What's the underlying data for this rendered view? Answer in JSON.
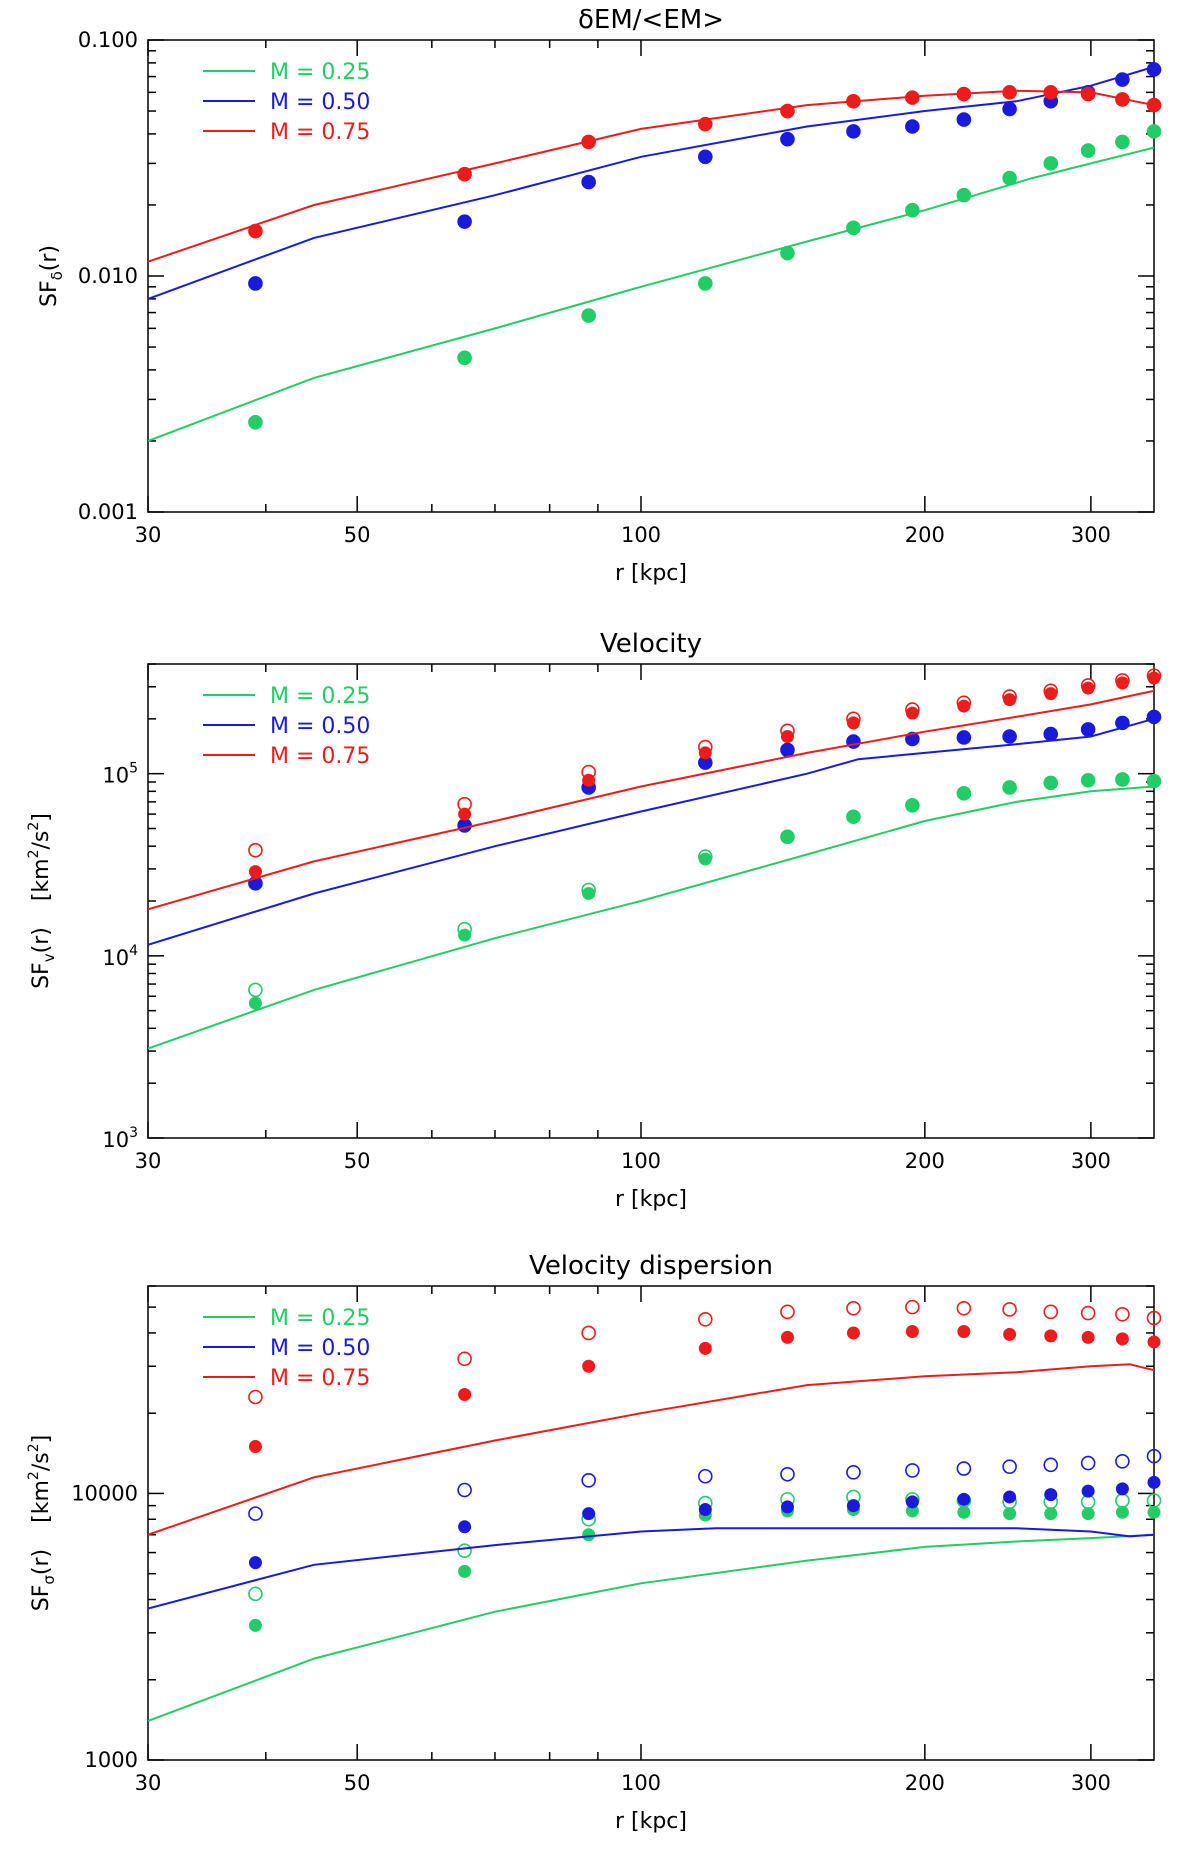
{
  "chart_data": [
    {
      "type": "line",
      "title": "δEM/<EM>",
      "xlabel": "r [kpc]",
      "ylabel": "SF_δ(r)",
      "ylabel_main": "SF",
      "ylabel_sub": "δ",
      "ylabel_tail": "(r)",
      "xscale": "log",
      "yscale": "log",
      "xlim": [
        30,
        350
      ],
      "ylim": [
        0.001,
        0.1
      ],
      "xticks": [
        {
          "v": 30,
          "label": "30"
        },
        {
          "v": 50,
          "label": "50"
        },
        {
          "v": 100,
          "label": "100"
        },
        {
          "v": 200,
          "label": "200"
        },
        {
          "v": 300,
          "label": "300"
        }
      ],
      "yticks": [
        {
          "v": 0.001,
          "label": "0.001"
        },
        {
          "v": 0.01,
          "label": "0.010"
        },
        {
          "v": 0.1,
          "label": "0.100"
        }
      ],
      "legend_position": "top-left",
      "series": [
        {
          "name": "M = 0.25",
          "color": "#22cc66",
          "line_x": [
            30,
            45,
            70,
            100,
            150,
            200,
            260,
            300,
            350
          ],
          "line_y": [
            0.002,
            0.0037,
            0.006,
            0.009,
            0.014,
            0.019,
            0.026,
            0.03,
            0.035
          ],
          "points_x": [
            39,
            65,
            88,
            117,
            143,
            168,
            194,
            220,
            246,
            272,
            298,
            324,
            350
          ],
          "points_y": [
            0.0024,
            0.0045,
            0.0068,
            0.0093,
            0.0125,
            0.016,
            0.019,
            0.022,
            0.026,
            0.03,
            0.034,
            0.037,
            0.041
          ],
          "open_y": [
            0.0024,
            0.0045,
            0.0068,
            0.0093,
            0.0125,
            0.016,
            0.019,
            0.022,
            0.026,
            0.03,
            0.034,
            0.037,
            0.041
          ]
        },
        {
          "name": "M = 0.50",
          "color": "#1a1adc",
          "line_x": [
            30,
            45,
            70,
            100,
            150,
            200,
            250,
            300,
            350
          ],
          "line_y": [
            0.008,
            0.0145,
            0.022,
            0.032,
            0.043,
            0.05,
            0.055,
            0.064,
            0.077
          ],
          "points_x": [
            39,
            65,
            88,
            117,
            143,
            168,
            194,
            220,
            246,
            272,
            298,
            324,
            350
          ],
          "points_y": [
            0.0093,
            0.017,
            0.025,
            0.032,
            0.038,
            0.041,
            0.043,
            0.046,
            0.051,
            0.055,
            0.06,
            0.068,
            0.075
          ],
          "open_y": [
            0.0093,
            0.017,
            0.025,
            0.032,
            0.038,
            0.041,
            0.043,
            0.046,
            0.051,
            0.055,
            0.06,
            0.068,
            0.075
          ]
        },
        {
          "name": "M = 0.75",
          "color": "#ee1b1b",
          "line_x": [
            30,
            45,
            70,
            100,
            150,
            200,
            250,
            300,
            350
          ],
          "line_y": [
            0.0115,
            0.02,
            0.03,
            0.042,
            0.053,
            0.058,
            0.061,
            0.06,
            0.053
          ],
          "points_x": [
            39,
            65,
            88,
            117,
            143,
            168,
            194,
            220,
            246,
            272,
            298,
            324,
            350
          ],
          "points_y": [
            0.0155,
            0.027,
            0.037,
            0.044,
            0.05,
            0.055,
            0.057,
            0.059,
            0.06,
            0.06,
            0.059,
            0.056,
            0.053
          ],
          "open_y": [
            0.0155,
            0.027,
            0.037,
            0.044,
            0.05,
            0.055,
            0.057,
            0.059,
            0.06,
            0.06,
            0.059,
            0.056,
            0.053
          ]
        }
      ]
    },
    {
      "type": "line",
      "title": "Velocity",
      "xlabel": "r [kpc]",
      "ylabel": "SF_v(r) [km²/s²]",
      "ylabel_main": "SF",
      "ylabel_sub": "v",
      "ylabel_tail": "(r)",
      "ylabel_units_pre": "[km",
      "ylabel_units_s1": "2",
      "ylabel_units_mid": "/s",
      "ylabel_units_s2": "2",
      "ylabel_units_post": "]",
      "xscale": "log",
      "yscale": "log",
      "xlim": [
        30,
        350
      ],
      "ylim": [
        1000,
        400000
      ],
      "xticks": [
        {
          "v": 30,
          "label": "30"
        },
        {
          "v": 50,
          "label": "50"
        },
        {
          "v": 100,
          "label": "100"
        },
        {
          "v": 200,
          "label": "200"
        },
        {
          "v": 300,
          "label": "300"
        }
      ],
      "yticks": [
        {
          "v": 1000,
          "base": "10",
          "exp": "3"
        },
        {
          "v": 10000,
          "base": "10",
          "exp": "4"
        },
        {
          "v": 100000,
          "base": "10",
          "exp": "5"
        }
      ],
      "legend_position": "top-left",
      "series": [
        {
          "name": "M = 0.25",
          "color": "#22cc66",
          "line_x": [
            30,
            45,
            70,
            100,
            150,
            200,
            250,
            300,
            350
          ],
          "line_y": [
            3100,
            6500,
            12500,
            20000,
            36000,
            55000,
            70000,
            80000,
            85000
          ],
          "points_x": [
            39,
            65,
            88,
            117,
            143,
            168,
            194,
            220,
            246,
            272,
            298,
            324,
            350
          ],
          "points_y": [
            5500,
            13000,
            22000,
            34000,
            45000,
            58000,
            67000,
            78000,
            84000,
            89000,
            92000,
            93000,
            91000
          ],
          "open_y": [
            6500,
            14000,
            23000,
            35000,
            45000,
            58000,
            67000,
            78000,
            84000,
            89000,
            92000,
            93000,
            91000
          ]
        },
        {
          "name": "M = 0.50",
          "color": "#1a1adc",
          "line_x": [
            30,
            45,
            70,
            100,
            150,
            170,
            200,
            250,
            300,
            350
          ],
          "line_y": [
            11500,
            22000,
            40000,
            62000,
            100000,
            120000,
            130000,
            145000,
            160000,
            200000
          ],
          "points_x": [
            39,
            65,
            88,
            117,
            143,
            168,
            194,
            220,
            246,
            272,
            298,
            324,
            350
          ],
          "points_y": [
            25000,
            52000,
            84000,
            115000,
            135000,
            150000,
            155000,
            158000,
            160000,
            165000,
            175000,
            190000,
            205000
          ],
          "open_y": [
            25000,
            52000,
            84000,
            115000,
            135000,
            150000,
            155000,
            158000,
            160000,
            165000,
            175000,
            190000,
            205000
          ]
        },
        {
          "name": "M = 0.75",
          "color": "#ee1b1b",
          "line_x": [
            30,
            45,
            70,
            100,
            150,
            200,
            250,
            300,
            350
          ],
          "line_y": [
            18000,
            33000,
            55000,
            85000,
            130000,
            170000,
            205000,
            240000,
            285000
          ],
          "points_x": [
            39,
            65,
            88,
            117,
            143,
            168,
            194,
            220,
            246,
            272,
            298,
            324,
            350
          ],
          "points_y": [
            29000,
            60000,
            92000,
            130000,
            160000,
            190000,
            215000,
            235000,
            255000,
            275000,
            295000,
            315000,
            335000
          ],
          "open_y": [
            38000,
            68000,
            102000,
            140000,
            172000,
            200000,
            225000,
            245000,
            265000,
            285000,
            305000,
            325000,
            345000
          ]
        }
      ]
    },
    {
      "type": "line",
      "title": "Velocity dispersion",
      "xlabel": "r [kpc]",
      "ylabel": "SF_σ(r) [km²/s²]",
      "ylabel_main": "SF",
      "ylabel_sub": "σ",
      "ylabel_tail": "(r)",
      "ylabel_units_pre": "[km",
      "ylabel_units_s1": "2",
      "ylabel_units_mid": "/s",
      "ylabel_units_s2": "2",
      "ylabel_units_post": "]",
      "xscale": "log",
      "yscale": "log",
      "xlim": [
        30,
        350
      ],
      "ylim": [
        1000,
        60000
      ],
      "xticks": [
        {
          "v": 30,
          "label": "30"
        },
        {
          "v": 50,
          "label": "50"
        },
        {
          "v": 100,
          "label": "100"
        },
        {
          "v": 200,
          "label": "200"
        },
        {
          "v": 300,
          "label": "300"
        }
      ],
      "yticks": [
        {
          "v": 1000,
          "label": "1000"
        },
        {
          "v": 10000,
          "label": "10000"
        }
      ],
      "legend_position": "top-left",
      "series": [
        {
          "name": "M = 0.25",
          "color": "#22cc66",
          "line_x": [
            30,
            45,
            70,
            100,
            150,
            200,
            250,
            300,
            350
          ],
          "line_y": [
            1400,
            2400,
            3600,
            4600,
            5600,
            6300,
            6600,
            6800,
            7000
          ],
          "points_x": [
            39,
            65,
            88,
            117,
            143,
            168,
            194,
            220,
            246,
            272,
            298,
            324,
            350
          ],
          "points_y": [
            3200,
            5100,
            7000,
            8300,
            8600,
            8700,
            8600,
            8500,
            8400,
            8400,
            8400,
            8500,
            8500
          ],
          "open_y": [
            4200,
            6100,
            8000,
            9200,
            9500,
            9700,
            9500,
            9400,
            9300,
            9300,
            9300,
            9400,
            9400
          ]
        },
        {
          "name": "M = 0.50",
          "color": "#1a1adc",
          "line_x": [
            30,
            45,
            70,
            100,
            120,
            150,
            200,
            250,
            300,
            330,
            350
          ],
          "line_y": [
            3700,
            5400,
            6400,
            7200,
            7400,
            7400,
            7400,
            7400,
            7200,
            6900,
            7000
          ],
          "points_x": [
            39,
            65,
            88,
            117,
            143,
            168,
            194,
            220,
            246,
            272,
            298,
            324,
            350
          ],
          "points_y": [
            5500,
            7500,
            8400,
            8700,
            8900,
            9000,
            9300,
            9500,
            9700,
            9900,
            10200,
            10400,
            11000
          ],
          "open_y": [
            8400,
            10300,
            11200,
            11600,
            11800,
            12000,
            12200,
            12400,
            12600,
            12800,
            13000,
            13200,
            13800
          ]
        },
        {
          "name": "M = 0.75",
          "color": "#ee1b1b",
          "line_x": [
            30,
            45,
            70,
            100,
            150,
            200,
            250,
            300,
            330,
            350
          ],
          "line_y": [
            7000,
            11500,
            15800,
            20000,
            25500,
            27500,
            28500,
            30000,
            30500,
            29000
          ],
          "points_x": [
            39,
            65,
            88,
            117,
            143,
            168,
            194,
            220,
            246,
            272,
            298,
            324,
            350
          ],
          "points_y": [
            15000,
            23500,
            30000,
            35000,
            38500,
            40000,
            40500,
            40500,
            39500,
            39000,
            38500,
            38000,
            37000
          ],
          "open_y": [
            23000,
            32000,
            40000,
            45000,
            48000,
            49500,
            50000,
            49500,
            49000,
            48000,
            47500,
            47000,
            45500
          ]
        }
      ]
    }
  ]
}
